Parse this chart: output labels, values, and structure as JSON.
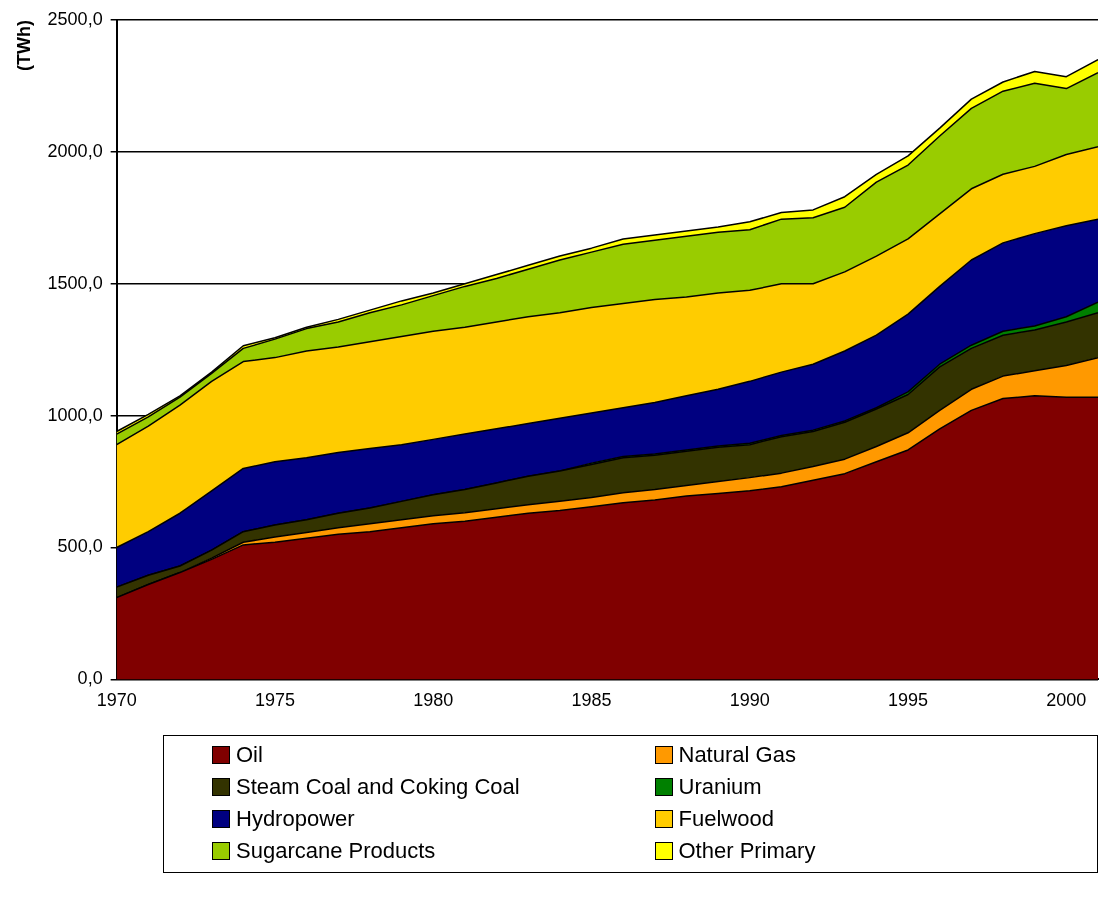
{
  "chart_data": {
    "type": "area",
    "stacked": true,
    "ylabel": "(TWh)",
    "x": [
      1970,
      1971,
      1972,
      1973,
      1974,
      1975,
      1976,
      1977,
      1978,
      1979,
      1980,
      1981,
      1982,
      1983,
      1984,
      1985,
      1986,
      1987,
      1988,
      1989,
      1990,
      1991,
      1992,
      1993,
      1994,
      1995,
      1996,
      1997,
      1998,
      1999,
      2000,
      2001
    ],
    "series": [
      {
        "name": "Oil",
        "color": "#800000",
        "values": [
          310,
          360,
          405,
          455,
          510,
          520,
          535,
          550,
          560,
          575,
          590,
          600,
          615,
          630,
          640,
          655,
          670,
          680,
          695,
          705,
          715,
          730,
          755,
          780,
          825,
          870,
          950,
          1020,
          1065,
          1075,
          1070,
          1070
        ]
      },
      {
        "name": "Natural Gas",
        "color": "#ff9900",
        "values": [
          0,
          0,
          0,
          5,
          10,
          20,
          22,
          25,
          30,
          30,
          30,
          32,
          32,
          32,
          35,
          35,
          38,
          40,
          40,
          45,
          50,
          52,
          52,
          55,
          58,
          65,
          70,
          80,
          85,
          95,
          120,
          150
        ]
      },
      {
        "name": "Steam Coal and Coking Coal",
        "color": "#333300",
        "values": [
          40,
          35,
          25,
          30,
          40,
          45,
          48,
          55,
          60,
          70,
          80,
          88,
          98,
          108,
          115,
          125,
          132,
          130,
          130,
          130,
          125,
          138,
          133,
          140,
          142,
          145,
          165,
          155,
          155,
          155,
          165,
          170
        ]
      },
      {
        "name": "Uranium",
        "color": "#008000",
        "values": [
          0,
          0,
          0,
          0,
          0,
          0,
          0,
          0,
          0,
          0,
          0,
          0,
          0,
          0,
          0,
          5,
          5,
          5,
          5,
          5,
          5,
          5,
          5,
          5,
          5,
          10,
          10,
          12,
          15,
          15,
          20,
          40
        ]
      },
      {
        "name": "Hydropower",
        "color": "#000080",
        "values": [
          150,
          165,
          200,
          225,
          240,
          240,
          235,
          230,
          225,
          215,
          210,
          210,
          205,
          200,
          200,
          190,
          185,
          195,
          205,
          215,
          235,
          240,
          250,
          265,
          275,
          295,
          295,
          323,
          335,
          350,
          345,
          315
        ]
      },
      {
        "name": "Fuelwood",
        "color": "#ffcc00",
        "values": [
          390,
          400,
          410,
          415,
          405,
          395,
          405,
          400,
          405,
          410,
          410,
          405,
          405,
          405,
          400,
          400,
          395,
          390,
          375,
          365,
          345,
          335,
          305,
          300,
          300,
          285,
          275,
          270,
          260,
          255,
          270,
          275
        ]
      },
      {
        "name": "Sugarcane Products",
        "color": "#99cc00",
        "values": [
          40,
          35,
          30,
          30,
          50,
          70,
          85,
          95,
          110,
          120,
          135,
          155,
          165,
          180,
          200,
          210,
          225,
          225,
          230,
          230,
          230,
          245,
          250,
          245,
          280,
          280,
          295,
          305,
          315,
          315,
          250,
          280
        ]
      },
      {
        "name": "Other Primary",
        "color": "#ffff00",
        "values": [
          10,
          10,
          5,
          5,
          10,
          5,
          5,
          10,
          10,
          15,
          10,
          10,
          15,
          15,
          15,
          15,
          20,
          20,
          20,
          20,
          30,
          25,
          30,
          40,
          30,
          35,
          30,
          35,
          35,
          45,
          45,
          50
        ]
      }
    ],
    "xlim": [
      1970,
      2001
    ],
    "xticks": [
      1970,
      1975,
      1980,
      1985,
      1990,
      1995,
      2000
    ],
    "ylim": [
      0,
      2500
    ],
    "yticks": [
      {
        "value": 0,
        "label": "0,0"
      },
      {
        "value": 500,
        "label": "500,0"
      },
      {
        "value": 1000,
        "label": "1000,0"
      },
      {
        "value": 1500,
        "label": "1500,0"
      },
      {
        "value": 2000,
        "label": "2000,0"
      },
      {
        "value": 2500,
        "label": "2500,0"
      }
    ],
    "grid": "y",
    "legend": "bottom",
    "marker": "none",
    "line_style": "solid"
  }
}
